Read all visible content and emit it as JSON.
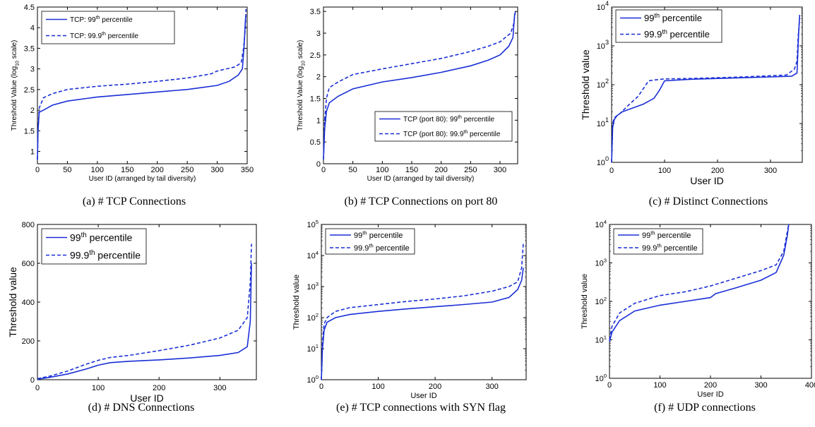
{
  "colors": {
    "series": "#1a2fd6",
    "axis": "#000000"
  },
  "chart_data": [
    {
      "id": "a",
      "type": "line",
      "caption": "(a) # TCP Connections",
      "xlabel": "User ID (arranged by tail diversity)",
      "ylabel_main": "Threshold Value (log",
      "ylabel_sub": "10",
      "ylabel_tail": " scale)",
      "xlim": [
        0,
        350
      ],
      "ylim": [
        0.7,
        4.5
      ],
      "yscale": "linear",
      "xticks": [
        0,
        50,
        100,
        150,
        200,
        250,
        300,
        350
      ],
      "yticks": [
        1,
        1.5,
        2,
        2.5,
        3,
        3.5,
        4,
        4.5
      ],
      "legend_position": "top-left",
      "series": [
        {
          "name_main": "TCP: 99",
          "name_sup": "th",
          "name_tail": " percentile",
          "style": "solid",
          "points": [
            [
              0,
              0.8
            ],
            [
              1,
              1.5
            ],
            [
              3,
              1.95
            ],
            [
              10,
              2.0
            ],
            [
              25,
              2.12
            ],
            [
              50,
              2.22
            ],
            [
              100,
              2.32
            ],
            [
              150,
              2.38
            ],
            [
              200,
              2.44
            ],
            [
              250,
              2.5
            ],
            [
              275,
              2.55
            ],
            [
              300,
              2.6
            ],
            [
              320,
              2.7
            ],
            [
              335,
              2.85
            ],
            [
              342,
              3.0
            ],
            [
              345,
              3.6
            ],
            [
              347,
              4.2
            ],
            [
              348,
              4.3
            ]
          ]
        },
        {
          "name_main": "TCP: 99.9",
          "name_sup": "th",
          "name_tail": " percentile",
          "style": "dashed",
          "points": [
            [
              0,
              0.8
            ],
            [
              1,
              1.5
            ],
            [
              3,
              2.05
            ],
            [
              10,
              2.3
            ],
            [
              25,
              2.4
            ],
            [
              50,
              2.5
            ],
            [
              100,
              2.58
            ],
            [
              150,
              2.63
            ],
            [
              200,
              2.7
            ],
            [
              250,
              2.78
            ],
            [
              290,
              2.88
            ],
            [
              300,
              2.95
            ],
            [
              330,
              3.05
            ],
            [
              340,
              3.15
            ],
            [
              344,
              3.5
            ],
            [
              347,
              4.0
            ],
            [
              348,
              4.45
            ]
          ]
        }
      ]
    },
    {
      "id": "b",
      "type": "line",
      "caption": "(b) # TCP Connections on port 80",
      "xlabel": "User ID (arranged by tail diversity)",
      "ylabel_main": "Threshold Value (log",
      "ylabel_sub": "10",
      "ylabel_tail": " scale)",
      "xlim": [
        0,
        330
      ],
      "ylim": [
        0,
        3.6
      ],
      "yscale": "linear",
      "xticks": [
        0,
        50,
        100,
        150,
        200,
        250,
        300
      ],
      "yticks": [
        0,
        0.5,
        1,
        1.5,
        2,
        2.5,
        3,
        3.5
      ],
      "legend_position": "bottom-right",
      "series": [
        {
          "name_main": "TCP (port 80): 99",
          "name_sup": "th",
          "name_tail": " percentile",
          "style": "solid",
          "points": [
            [
              0,
              0.1
            ],
            [
              2,
              0.8
            ],
            [
              5,
              1.2
            ],
            [
              10,
              1.4
            ],
            [
              25,
              1.55
            ],
            [
              50,
              1.72
            ],
            [
              100,
              1.88
            ],
            [
              150,
              1.98
            ],
            [
              200,
              2.1
            ],
            [
              250,
              2.25
            ],
            [
              280,
              2.38
            ],
            [
              300,
              2.5
            ],
            [
              315,
              2.7
            ],
            [
              322,
              2.9
            ],
            [
              325,
              3.45
            ]
          ]
        },
        {
          "name_main": "TCP (port 80): 99.9",
          "name_sup": "th",
          "name_tail": " percentile",
          "style": "dashed",
          "points": [
            [
              0,
              0.1
            ],
            [
              2,
              1.0
            ],
            [
              5,
              1.5
            ],
            [
              10,
              1.75
            ],
            [
              25,
              1.88
            ],
            [
              50,
              2.05
            ],
            [
              100,
              2.18
            ],
            [
              150,
              2.3
            ],
            [
              200,
              2.42
            ],
            [
              250,
              2.58
            ],
            [
              280,
              2.7
            ],
            [
              300,
              2.8
            ],
            [
              318,
              3.0
            ],
            [
              323,
              3.2
            ],
            [
              326,
              3.5
            ]
          ]
        }
      ]
    },
    {
      "id": "c",
      "type": "line",
      "caption": "(c) # Distinct Connections",
      "xlabel": "User ID",
      "ylabel_main": "Threshold value",
      "ylabel_sub": "",
      "ylabel_tail": "",
      "xlim": [
        0,
        360
      ],
      "ylim": [
        0,
        4
      ],
      "yscale": "log10",
      "xticks": [
        0,
        100,
        200,
        300
      ],
      "yticks": [
        0,
        1,
        2,
        3,
        4
      ],
      "legend_position": "top-left",
      "series": [
        {
          "name_main": "99",
          "name_sup": "th",
          "name_tail": " percentile",
          "style": "solid",
          "points": [
            [
              0,
              0.0
            ],
            [
              2,
              0.9
            ],
            [
              5,
              1.1
            ],
            [
              10,
              1.2
            ],
            [
              20,
              1.3
            ],
            [
              40,
              1.4
            ],
            [
              60,
              1.5
            ],
            [
              80,
              1.65
            ],
            [
              90,
              1.85
            ],
            [
              100,
              2.1
            ],
            [
              150,
              2.14
            ],
            [
              200,
              2.16
            ],
            [
              250,
              2.18
            ],
            [
              300,
              2.2
            ],
            [
              340,
              2.22
            ],
            [
              350,
              2.3
            ],
            [
              353,
              3.3
            ],
            [
              355,
              3.8
            ]
          ]
        },
        {
          "name_main": "99.9",
          "name_sup": "th",
          "name_tail": " percentile",
          "style": "dashed",
          "points": [
            [
              0,
              0.0
            ],
            [
              2,
              1.0
            ],
            [
              5,
              1.15
            ],
            [
              15,
              1.25
            ],
            [
              30,
              1.45
            ],
            [
              50,
              1.7
            ],
            [
              60,
              1.9
            ],
            [
              70,
              2.1
            ],
            [
              80,
              2.12
            ],
            [
              100,
              2.15
            ],
            [
              150,
              2.16
            ],
            [
              200,
              2.18
            ],
            [
              250,
              2.2
            ],
            [
              300,
              2.23
            ],
            [
              330,
              2.25
            ],
            [
              345,
              2.4
            ],
            [
              350,
              2.6
            ],
            [
              352,
              3.2
            ],
            [
              355,
              3.7
            ]
          ]
        }
      ]
    },
    {
      "id": "d",
      "type": "line",
      "caption": "(d) # DNS Connections",
      "xlabel": "User ID",
      "ylabel_main": "Threshold value",
      "ylabel_sub": "",
      "ylabel_tail": "",
      "xlim": [
        0,
        360
      ],
      "ylim": [
        0,
        800
      ],
      "yscale": "linear",
      "xticks": [
        0,
        100,
        200,
        300
      ],
      "yticks": [
        0,
        200,
        400,
        600,
        800
      ],
      "legend_position": "top-left",
      "series": [
        {
          "name_main": "99",
          "name_sup": "th",
          "name_tail": " percentile",
          "style": "solid",
          "points": [
            [
              0,
              3
            ],
            [
              20,
              12
            ],
            [
              50,
              30
            ],
            [
              80,
              55
            ],
            [
              100,
              75
            ],
            [
              120,
              88
            ],
            [
              150,
              95
            ],
            [
              200,
              102
            ],
            [
              250,
              112
            ],
            [
              300,
              125
            ],
            [
              330,
              140
            ],
            [
              345,
              170
            ],
            [
              350,
              300
            ],
            [
              352,
              600
            ]
          ]
        },
        {
          "name_main": "99.9",
          "name_sup": "th",
          "name_tail": " percentile",
          "style": "dashed",
          "points": [
            [
              0,
              5
            ],
            [
              20,
              18
            ],
            [
              50,
              45
            ],
            [
              80,
              80
            ],
            [
              100,
              100
            ],
            [
              120,
              115
            ],
            [
              150,
              125
            ],
            [
              200,
              150
            ],
            [
              250,
              178
            ],
            [
              300,
              215
            ],
            [
              330,
              255
            ],
            [
              345,
              320
            ],
            [
              350,
              500
            ],
            [
              352,
              700
            ]
          ]
        }
      ]
    },
    {
      "id": "e",
      "type": "line",
      "caption": "(e) # TCP connections with SYN flag",
      "xlabel": "User ID",
      "ylabel_main": "Threshold value",
      "ylabel_sub": "",
      "ylabel_tail": "",
      "xlim": [
        0,
        360
      ],
      "ylim": [
        0,
        5
      ],
      "yscale": "log10",
      "xticks": [
        0,
        100,
        200,
        300
      ],
      "yticks": [
        0,
        1,
        2,
        3,
        4,
        5
      ],
      "legend_position": "top-left",
      "series": [
        {
          "name_main": "99",
          "name_sup": "th",
          "name_tail": " percentile",
          "style": "solid",
          "points": [
            [
              0,
              0.0
            ],
            [
              2,
              1.0
            ],
            [
              5,
              1.6
            ],
            [
              10,
              1.85
            ],
            [
              25,
              2.0
            ],
            [
              50,
              2.1
            ],
            [
              100,
              2.2
            ],
            [
              150,
              2.28
            ],
            [
              200,
              2.35
            ],
            [
              250,
              2.42
            ],
            [
              300,
              2.5
            ],
            [
              330,
              2.65
            ],
            [
              345,
              2.9
            ],
            [
              352,
              3.2
            ],
            [
              355,
              3.6
            ]
          ]
        },
        {
          "name_main": "99.9",
          "name_sup": "th",
          "name_tail": " percentile",
          "style": "dashed",
          "points": [
            [
              0,
              0.0
            ],
            [
              2,
              1.2
            ],
            [
              5,
              1.8
            ],
            [
              10,
              2.0
            ],
            [
              25,
              2.2
            ],
            [
              50,
              2.32
            ],
            [
              100,
              2.42
            ],
            [
              150,
              2.52
            ],
            [
              200,
              2.6
            ],
            [
              250,
              2.7
            ],
            [
              300,
              2.85
            ],
            [
              330,
              3.0
            ],
            [
              345,
              3.15
            ],
            [
              352,
              3.6
            ],
            [
              355,
              4.4
            ]
          ]
        }
      ]
    },
    {
      "id": "f",
      "type": "line",
      "caption": "(f) # UDP connections",
      "xlabel": "User ID",
      "ylabel_main": "Threshold value",
      "ylabel_sub": "",
      "ylabel_tail": "",
      "xlim": [
        0,
        400
      ],
      "ylim": [
        0,
        4
      ],
      "yscale": "log10",
      "xticks": [
        0,
        100,
        200,
        300,
        400
      ],
      "yticks": [
        0,
        1,
        2,
        3,
        4
      ],
      "legend_position": "top-left",
      "series": [
        {
          "name_main": "99",
          "name_sup": "th",
          "name_tail": " percentile",
          "style": "solid",
          "points": [
            [
              0,
              0.95
            ],
            [
              5,
              1.2
            ],
            [
              20,
              1.5
            ],
            [
              50,
              1.75
            ],
            [
              100,
              1.9
            ],
            [
              150,
              2.0
            ],
            [
              200,
              2.1
            ],
            [
              210,
              2.2
            ],
            [
              250,
              2.35
            ],
            [
              300,
              2.55
            ],
            [
              330,
              2.75
            ],
            [
              345,
              3.2
            ],
            [
              352,
              3.7
            ],
            [
              355,
              4.0
            ]
          ]
        },
        {
          "name_main": "99.9",
          "name_sup": "th",
          "name_tail": " percentile",
          "style": "dashed",
          "points": [
            [
              0,
              1.0
            ],
            [
              5,
              1.35
            ],
            [
              20,
              1.7
            ],
            [
              50,
              1.95
            ],
            [
              100,
              2.15
            ],
            [
              150,
              2.25
            ],
            [
              200,
              2.4
            ],
            [
              250,
              2.6
            ],
            [
              300,
              2.8
            ],
            [
              330,
              2.95
            ],
            [
              345,
              3.3
            ],
            [
              352,
              3.8
            ],
            [
              355,
              4.0
            ]
          ]
        }
      ]
    }
  ]
}
